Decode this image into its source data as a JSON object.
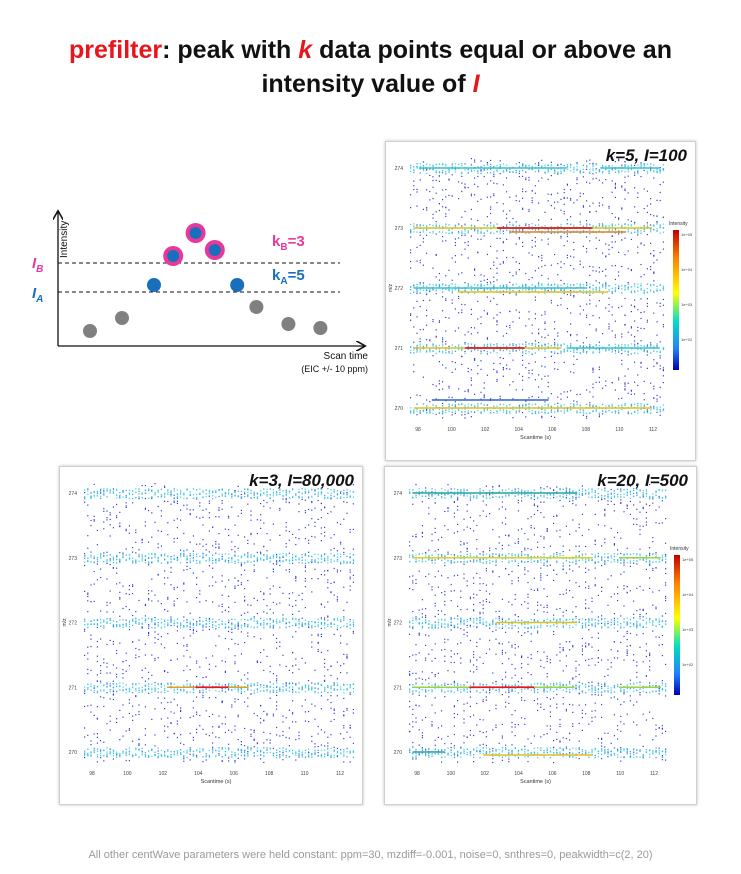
{
  "title": {
    "line1": {
      "w1": "prefilter",
      "w2": ": peak with ",
      "w3": "k",
      "w4": " data points equal or above an"
    },
    "line2": {
      "w1": "intensity value of ",
      "w2": "I"
    }
  },
  "diagram": {
    "y_axis_label": "Intensity",
    "x_axis_label": "Scan time",
    "x_axis_sublabel": "(EIC  +/- 10 ppm)",
    "IB_label": {
      "letter": "I",
      "sub": "B"
    },
    "IA_label": {
      "letter": "I",
      "sub": "A"
    },
    "kB_label": {
      "letter": "k",
      "sub": "B",
      "value": "=3"
    },
    "kA_label": {
      "letter": "k",
      "sub": "A",
      "value": "=5"
    },
    "colors": {
      "pink": "#e8389a",
      "blue": "#1a6fbd",
      "gray": "#808080",
      "red": "#e8161c"
    },
    "points": [
      {
        "t": 1,
        "level": "gray"
      },
      {
        "t": 2,
        "level": "gray"
      },
      {
        "t": 3,
        "level": "blue"
      },
      {
        "t": 3.6,
        "level": "pink"
      },
      {
        "t": 4.3,
        "level": "pink"
      },
      {
        "t": 4.9,
        "level": "pink"
      },
      {
        "t": 5.6,
        "level": "blue"
      },
      {
        "t": 6.2,
        "level": "gray"
      },
      {
        "t": 7.2,
        "level": "gray"
      },
      {
        "t": 8.2,
        "level": "gray"
      }
    ]
  },
  "panels": [
    {
      "id": "A",
      "label": "k=5, I=100",
      "x_label": "Scantime (s)",
      "y_label": "m/z",
      "x_ticks": [
        "98",
        "100",
        "102",
        "104",
        "106",
        "108",
        "110",
        "112"
      ],
      "y_ticks": [
        "274",
        "273",
        "272",
        "271",
        "270"
      ],
      "legend": {
        "title": "Intensity",
        "ticks": [
          "1e+05",
          "1e+04",
          "1e+03",
          "1e+02"
        ]
      }
    },
    {
      "id": "B",
      "label": "k=3, I=80,000",
      "x_label": "Scantime (s)",
      "y_label": "m/z",
      "x_ticks": [
        "98",
        "100",
        "102",
        "104",
        "106",
        "108",
        "110",
        "112"
      ],
      "y_ticks": [
        "274",
        "273",
        "272",
        "271",
        "270"
      ]
    },
    {
      "id": "C",
      "label": "k=20, I=500",
      "x_label": "Scantime (s)",
      "y_label": "m/z",
      "x_ticks": [
        "98",
        "100",
        "102",
        "104",
        "106",
        "108",
        "110",
        "112"
      ],
      "y_ticks": [
        "274",
        "273",
        "272",
        "271",
        "270"
      ],
      "legend": {
        "title": "Intensity",
        "ticks": [
          "1e+05",
          "1e+04",
          "1e+03",
          "1e+02"
        ]
      }
    }
  ],
  "footer": "All other centWave parameters were held constant: ppm=30, mzdiff=-0.001, noise=0, snthres=0, peakwidth=c(2, 20)"
}
